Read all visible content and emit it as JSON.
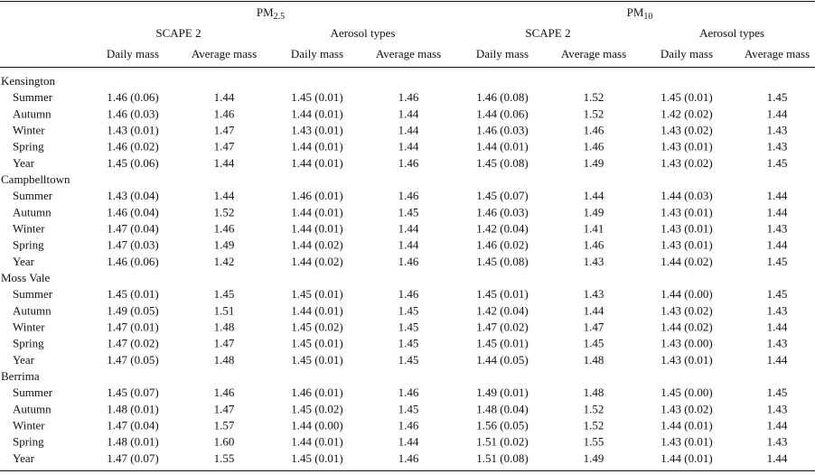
{
  "table": {
    "pollutants": [
      {
        "base": "PM",
        "sub": "2.5"
      },
      {
        "base": "PM",
        "sub": "10"
      }
    ],
    "methods": [
      "SCAPE 2",
      "Aerosol types",
      "SCAPE 2",
      "Aerosol types"
    ],
    "columns": [
      "Daily mass",
      "Average mass",
      "Daily mass",
      "Average mass",
      "Daily mass",
      "Average mass",
      "Daily mass",
      "Average mass"
    ],
    "groups": [
      {
        "site": "Kensington",
        "rows": [
          {
            "season": "Summer",
            "values": [
              "1.46 (0.06)",
              "1.44",
              "1.45 (0.01)",
              "1.46",
              "1.46 (0.08)",
              "1.52",
              "1.45 (0.01)",
              "1.45"
            ]
          },
          {
            "season": "Autumn",
            "values": [
              "1.46 (0.03)",
              "1.46",
              "1.44 (0.01)",
              "1.44",
              "1.44 (0.06)",
              "1.52",
              "1.42 (0.02)",
              "1.44"
            ]
          },
          {
            "season": "Winter",
            "values": [
              "1.43 (0.01)",
              "1.47",
              "1.43 (0.01)",
              "1.44",
              "1.46 (0.03)",
              "1.46",
              "1.43 (0.02)",
              "1.43"
            ]
          },
          {
            "season": "Spring",
            "values": [
              "1.46 (0.02)",
              "1.47",
              "1.44 (0.01)",
              "1.44",
              "1.44 (0.01)",
              "1.46",
              "1.43 (0.01)",
              "1.43"
            ]
          },
          {
            "season": "Year",
            "values": [
              "1.45 (0.06)",
              "1.44",
              "1.44 (0.01)",
              "1.46",
              "1.45 (0.08)",
              "1.49",
              "1.43 (0.02)",
              "1.45"
            ]
          }
        ]
      },
      {
        "site": "Campbelltown",
        "rows": [
          {
            "season": "Summer",
            "values": [
              "1.43 (0.04)",
              "1.44",
              "1.46 (0.01)",
              "1.46",
              "1.45 (0.07)",
              "1.44",
              "1.44 (0.03)",
              "1.44"
            ]
          },
          {
            "season": "Autumn",
            "values": [
              "1.46 (0.04)",
              "1.52",
              "1.44 (0.01)",
              "1.45",
              "1.46 (0.03)",
              "1.49",
              "1.43 (0.01)",
              "1.44"
            ]
          },
          {
            "season": "Winter",
            "values": [
              "1.47 (0.04)",
              "1.46",
              "1.44 (0.01)",
              "1.44",
              "1.42 (0.04)",
              "1.41",
              "1.43 (0.01)",
              "1.43"
            ]
          },
          {
            "season": "Spring",
            "values": [
              "1.47 (0.03)",
              "1.49",
              "1.44 (0.02)",
              "1.44",
              "1.46 (0.02)",
              "1.46",
              "1.43 (0.01)",
              "1.44"
            ]
          },
          {
            "season": "Year",
            "values": [
              "1.46 (0.06)",
              "1.42",
              "1.44 (0.02)",
              "1.46",
              "1.45 (0.08)",
              "1.43",
              "1.44 (0.02)",
              "1.45"
            ]
          }
        ]
      },
      {
        "site": "Moss Vale",
        "rows": [
          {
            "season": "Summer",
            "values": [
              "1.45 (0.01)",
              "1.45",
              "1.45 (0.01)",
              "1.46",
              "1.45 (0.01)",
              "1.43",
              "1.44 (0.00)",
              "1.45"
            ]
          },
          {
            "season": "Autumn",
            "values": [
              "1.49 (0.05)",
              "1.51",
              "1.44 (0.01)",
              "1.45",
              "1.42 (0.04)",
              "1.44",
              "1.43 (0.02)",
              "1.43"
            ]
          },
          {
            "season": "Winter",
            "values": [
              "1.47 (0.01)",
              "1.48",
              "1.45 (0.02)",
              "1.45",
              "1.47 (0.02)",
              "1.47",
              "1.44 (0.02)",
              "1.44"
            ]
          },
          {
            "season": "Spring",
            "values": [
              "1.47 (0.02)",
              "1.47",
              "1.45 (0.01)",
              "1.45",
              "1.45 (0.01)",
              "1.45",
              "1.43 (0.00)",
              "1.43"
            ]
          },
          {
            "season": "Year",
            "values": [
              "1.47 (0.05)",
              "1.48",
              "1.45 (0.01)",
              "1.45",
              "1.44 (0.05)",
              "1.48",
              "1.43 (0.01)",
              "1.44"
            ]
          }
        ]
      },
      {
        "site": "Berrima",
        "rows": [
          {
            "season": "Summer",
            "values": [
              "1.45 (0.07)",
              "1.46",
              "1.46 (0.01)",
              "1.46",
              "1.49 (0.01)",
              "1.48",
              "1.45 (0.00)",
              "1.45"
            ]
          },
          {
            "season": "Autumn",
            "values": [
              "1.48 (0.01)",
              "1.47",
              "1.45 (0.02)",
              "1.45",
              "1.48 (0.04)",
              "1.52",
              "1.43 (0.02)",
              "1.43"
            ]
          },
          {
            "season": "Winter",
            "values": [
              "1.47 (0.04)",
              "1.57",
              "1.44 (0.00)",
              "1.46",
              "1.56 (0.05)",
              "1.52",
              "1.44 (0.01)",
              "1.44"
            ]
          },
          {
            "season": "Spring",
            "values": [
              "1.48 (0.01)",
              "1.60",
              "1.44 (0.01)",
              "1.44",
              "1.51 (0.02)",
              "1.55",
              "1.43 (0.01)",
              "1.43"
            ]
          },
          {
            "season": "Year",
            "values": [
              "1.47 (0.07)",
              "1.55",
              "1.45 (0.01)",
              "1.46",
              "1.51 (0.08)",
              "1.49",
              "1.44 (0.01)",
              "1.44"
            ]
          }
        ]
      }
    ]
  }
}
